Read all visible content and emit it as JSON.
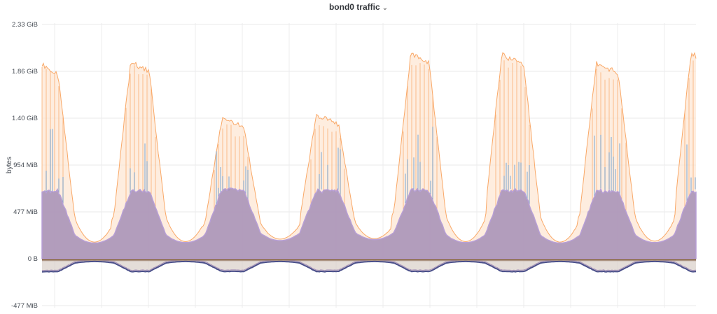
{
  "panel": {
    "title": "bond0 traffic",
    "menu_icon": "chevron-down-icon"
  },
  "chart_data": {
    "type": "area",
    "title": "bond0 traffic",
    "ylabel": "bytes",
    "xlabel": "",
    "ylim": [
      -500,
      2440
    ],
    "ytick_labels": [
      "2.33 GiB",
      "1.86 GiB",
      "1.40 GiB",
      "954 MiB",
      "477 MiB",
      "0 B",
      "-477 MiB"
    ],
    "ytick_values_mib": [
      2385,
      1908,
      1431,
      954,
      477,
      0,
      -477
    ],
    "grid": true,
    "legend": "none",
    "periods": 7,
    "note_units": "MiB",
    "series": [
      {
        "role": "total (orange line)",
        "color": "#f9a867",
        "peaks": [
          1980,
          2090,
          1480,
          1510,
          2180,
          2160,
          2080,
          2150
        ],
        "troughs": [
          170,
          175,
          200,
          205,
          175,
          170,
          180
        ]
      },
      {
        "role": "received (purple area)",
        "color": "#a48eb6",
        "plateau": [
          690,
          690,
          700,
          690,
          695,
          695,
          690,
          690
        ],
        "troughs": [
          160,
          165,
          185,
          195,
          165,
          160,
          165
        ]
      },
      {
        "role": "spikes (blue)",
        "color": "#4f8fcf",
        "max_spike": [
          1340,
          1460,
          1110,
          1230,
          1390,
          1430,
          1330,
          1350
        ]
      },
      {
        "role": "transmitted (brown band)",
        "color": "#94765f",
        "level": -18
      },
      {
        "role": "transmitted low (dark line)",
        "color": "#4a4f8a",
        "plateau": -130,
        "troughs": [
          -28,
          -28,
          -28,
          -28,
          -28,
          -28,
          -28
        ]
      }
    ]
  }
}
